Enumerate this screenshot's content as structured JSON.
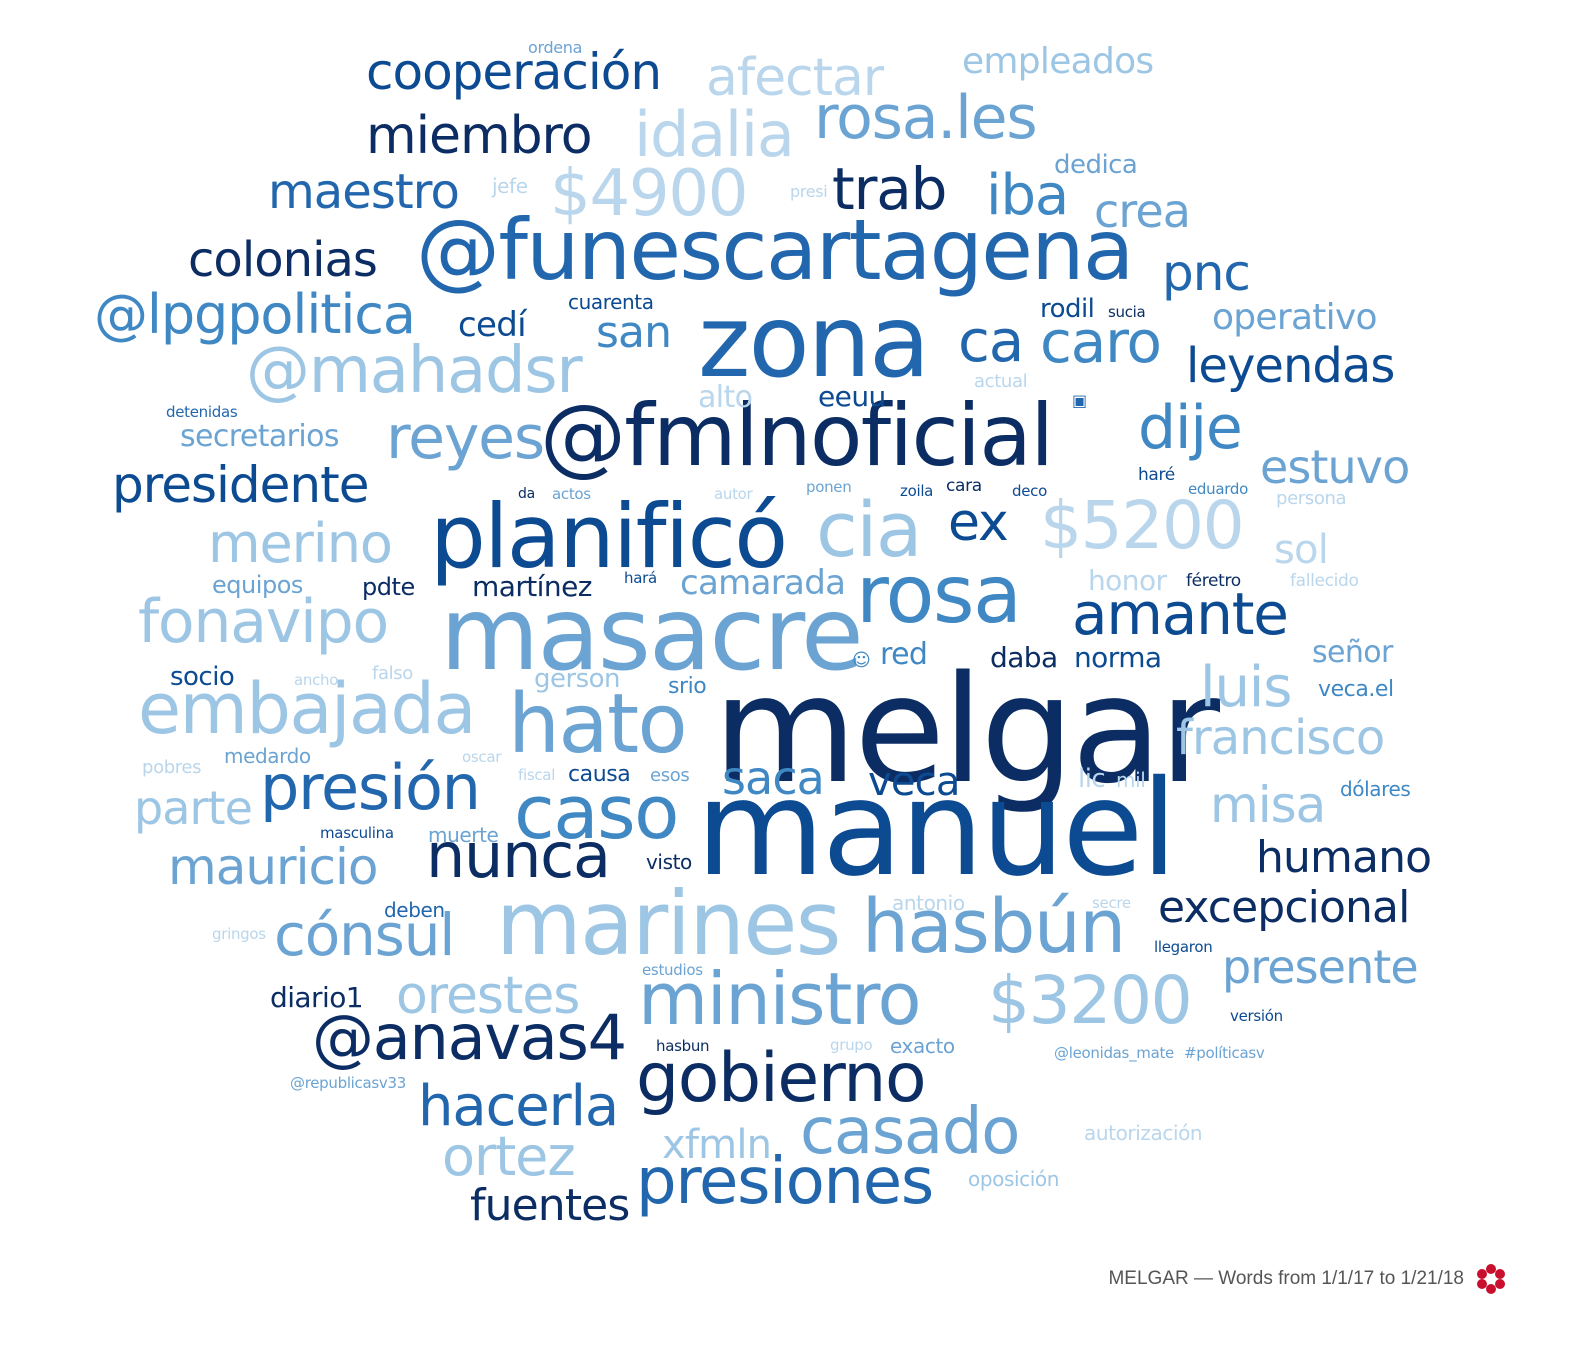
{
  "caption": "MELGAR — Words from 1/1/17 to 1/21/18",
  "colors": {
    "c1": "#0b2d63",
    "c2": "#0c4a91",
    "c3": "#2267ad",
    "c4": "#3f88c4",
    "c5": "#6ba3d3",
    "c6": "#9dc6e5",
    "c7": "#b9d6ec",
    "logo": "#c8102e"
  },
  "words": [
    {
      "t": "melgar",
      "c": "c1"
    },
    {
      "t": "manuel",
      "c": "c2"
    },
    {
      "t": "masacre",
      "c": "c5"
    },
    {
      "t": "zona",
      "c": "c3"
    },
    {
      "t": "@fmlnoficial",
      "c": "c1"
    },
    {
      "t": "@funescartagena",
      "c": "c3"
    },
    {
      "t": "planificó",
      "c": "c2"
    },
    {
      "t": "marines",
      "c": "c6"
    },
    {
      "t": "rosa",
      "c": "c4"
    },
    {
      "t": "hato",
      "c": "c5"
    },
    {
      "t": "gobierno",
      "c": "c1"
    },
    {
      "t": "caso",
      "c": "c4"
    },
    {
      "t": "hasbún",
      "c": "c5"
    },
    {
      "t": "ministro",
      "c": "c5"
    },
    {
      "t": "cia",
      "c": "c6"
    },
    {
      "t": "embajada",
      "c": "c6"
    },
    {
      "t": "presión",
      "c": "c3"
    },
    {
      "t": "nunca",
      "c": "c1"
    },
    {
      "t": "casado",
      "c": "c5"
    },
    {
      "t": "presiones",
      "c": "c3"
    },
    {
      "t": "amante",
      "c": "c2"
    },
    {
      "t": "$5200",
      "c": "c7"
    },
    {
      "t": "@mahadsr",
      "c": "c6"
    },
    {
      "t": "$3200",
      "c": "c6"
    },
    {
      "t": "@anavas4",
      "c": "c1"
    },
    {
      "t": "fonavipo",
      "c": "c6"
    },
    {
      "t": "cónsul",
      "c": "c5"
    },
    {
      "t": "@lpgpolitica",
      "c": "c4"
    },
    {
      "t": "cooperación",
      "c": "c2"
    },
    {
      "t": "afectar",
      "c": "c7"
    },
    {
      "t": "idalia",
      "c": "c7"
    },
    {
      "t": "$4900",
      "c": "c7"
    },
    {
      "t": "rosa.les",
      "c": "c5"
    },
    {
      "t": "miembro",
      "c": "c1"
    },
    {
      "t": "trab",
      "c": "c1"
    },
    {
      "t": "iba",
      "c": "c4"
    },
    {
      "t": "reyes",
      "c": "c5"
    },
    {
      "t": "dije",
      "c": "c4"
    },
    {
      "t": "ex",
      "c": "c2"
    },
    {
      "t": "caro",
      "c": "c4"
    },
    {
      "t": "ca",
      "c": "c3"
    },
    {
      "t": "merino",
      "c": "c6"
    },
    {
      "t": "presidente",
      "c": "c2"
    },
    {
      "t": "hacerla",
      "c": "c3"
    },
    {
      "t": "ortez",
      "c": "c6"
    },
    {
      "t": "mauricio",
      "c": "c5"
    },
    {
      "t": "excepcional",
      "c": "c1"
    },
    {
      "t": "humano",
      "c": "c1"
    },
    {
      "t": "francisco",
      "c": "c6"
    },
    {
      "t": "luis",
      "c": "c6"
    },
    {
      "t": "leyendas",
      "c": "c2"
    },
    {
      "t": "estuvo",
      "c": "c5"
    },
    {
      "t": "colonias",
      "c": "c1"
    },
    {
      "t": "maestro",
      "c": "c3"
    },
    {
      "t": "orestes",
      "c": "c6"
    },
    {
      "t": "presente",
      "c": "c5"
    },
    {
      "t": "saca",
      "c": "c4"
    },
    {
      "t": "veca",
      "c": "c2"
    },
    {
      "t": "parte",
      "c": "c6"
    },
    {
      "t": "misa",
      "c": "c6"
    },
    {
      "t": "fuentes",
      "c": "c1"
    },
    {
      "t": "xfmln",
      "c": "c6"
    },
    {
      "t": "pnc",
      "c": "c3"
    },
    {
      "t": "san",
      "c": "c4"
    },
    {
      "t": "crea",
      "c": "c5"
    },
    {
      "t": "empleados",
      "c": "c6"
    },
    {
      "t": "sol",
      "c": "c7"
    },
    {
      "t": "operativo",
      "c": "c5"
    },
    {
      "t": "camarada",
      "c": "c5"
    },
    {
      "t": "norma",
      "c": "c2"
    },
    {
      "t": "daba",
      "c": "c1"
    },
    {
      "t": "martínez",
      "c": "c1"
    },
    {
      "t": "diario1",
      "c": "c1"
    },
    {
      "t": "cedí",
      "c": "c2"
    },
    {
      "t": "señor",
      "c": "c5"
    },
    {
      "t": "secretarios",
      "c": "c5"
    },
    {
      "t": "alto",
      "c": "c7"
    },
    {
      "t": "eeuu",
      "c": "c2"
    },
    {
      "t": "red",
      "c": "c4"
    },
    {
      "t": "gerson",
      "c": "c6"
    },
    {
      "t": "socio",
      "c": "c2"
    },
    {
      "t": "pdte",
      "c": "c1"
    },
    {
      "t": "equipos",
      "c": "c5"
    },
    {
      "t": "honor",
      "c": "c7"
    },
    {
      "t": "rodil",
      "c": "c2"
    },
    {
      "t": "dedica",
      "c": "c5"
    },
    {
      "t": "cuarenta",
      "c": "c2"
    },
    {
      "t": "medardo",
      "c": "c5"
    },
    {
      "t": "causa",
      "c": "c2"
    },
    {
      "t": "srio",
      "c": "c4"
    },
    {
      "t": "veca.el",
      "c": "c4"
    },
    {
      "t": "dólares",
      "c": "c4"
    },
    {
      "t": "muerte",
      "c": "c5"
    },
    {
      "t": "deben",
      "c": "c3"
    },
    {
      "t": "visto",
      "c": "c1"
    },
    {
      "t": "exacto",
      "c": "c5"
    },
    {
      "t": "antonio",
      "c": "c7"
    },
    {
      "t": "ordena",
      "c": "c5"
    },
    {
      "t": "jefe",
      "c": "c7"
    },
    {
      "t": "presi",
      "c": "c7"
    },
    {
      "t": "sucia",
      "c": "c1"
    },
    {
      "t": "actual",
      "c": "c7"
    },
    {
      "t": "detenidas",
      "c": "c3"
    },
    {
      "t": "da",
      "c": "c1"
    },
    {
      "t": "actos",
      "c": "c5"
    },
    {
      "t": "autor",
      "c": "c7"
    },
    {
      "t": "ponen",
      "c": "c5"
    },
    {
      "t": "zoila",
      "c": "c2"
    },
    {
      "t": "cara",
      "c": "c1"
    },
    {
      "t": "deco",
      "c": "c2"
    },
    {
      "t": "haré",
      "c": "c2"
    },
    {
      "t": "eduardo",
      "c": "c4"
    },
    {
      "t": "persona",
      "c": "c7"
    },
    {
      "t": "hará",
      "c": "c2"
    },
    {
      "t": "féretro",
      "c": "c1"
    },
    {
      "t": "fallecido",
      "c": "c7"
    },
    {
      "t": "ancho",
      "c": "c7"
    },
    {
      "t": "falso",
      "c": "c7"
    },
    {
      "t": "pobres",
      "c": "c7"
    },
    {
      "t": "oscar",
      "c": "c7"
    },
    {
      "t": "fiscal",
      "c": "c7"
    },
    {
      "t": "esos",
      "c": "c5"
    },
    {
      "t": "lic",
      "c": "c7"
    },
    {
      "t": "mil",
      "c": "c7"
    },
    {
      "t": "masculina",
      "c": "c2"
    },
    {
      "t": "gringos",
      "c": "c7"
    },
    {
      "t": "secre",
      "c": "c7"
    },
    {
      "t": "llegaron",
      "c": "c2"
    },
    {
      "t": "estudios",
      "c": "c5"
    },
    {
      "t": "versión",
      "c": "c2"
    },
    {
      "t": "hasbun",
      "c": "c1"
    },
    {
      "t": "grupo",
      "c": "c7"
    },
    {
      "t": "@leonidas_mate",
      "c": "c5"
    },
    {
      "t": "#políticasv",
      "c": "c5"
    },
    {
      "t": "@republicasv33",
      "c": "c5"
    },
    {
      "t": "autorización",
      "c": "c7"
    },
    {
      "t": "oposición",
      "c": "c6"
    }
  ]
}
